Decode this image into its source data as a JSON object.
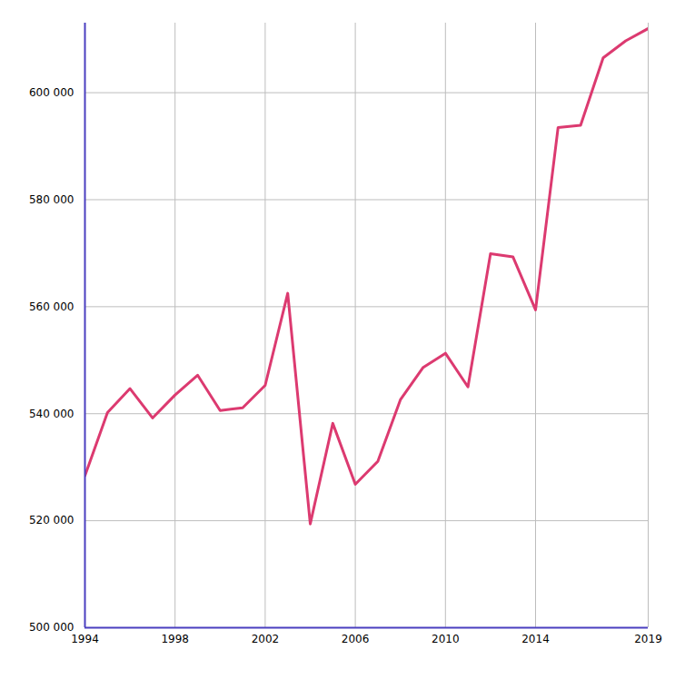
{
  "chart_data": {
    "type": "line",
    "x": [
      1994,
      1995,
      1996,
      1997,
      1998,
      1999,
      2000,
      2001,
      2002,
      2003,
      2004,
      2005,
      2006,
      2007,
      2008,
      2009,
      2010,
      2011,
      2012,
      2013,
      2014,
      2015,
      2016,
      2017,
      2018,
      2019
    ],
    "values": [
      528400,
      540200,
      544700,
      539200,
      543500,
      547200,
      540600,
      541100,
      545300,
      562500,
      519400,
      538200,
      526800,
      531100,
      542600,
      548600,
      551300,
      545000,
      569900,
      569300,
      559400,
      593500,
      593900,
      606500,
      609700,
      612000
    ],
    "color": "#dc3a70",
    "xlim": [
      1994,
      2019
    ],
    "xticks": [
      1994,
      1998,
      2002,
      2006,
      2010,
      2014,
      2019
    ],
    "ylim": [
      500000,
      613000
    ],
    "yticks": [
      {
        "value": 500000,
        "label": "500 000"
      },
      {
        "value": 520000,
        "label": "520 000"
      },
      {
        "value": 540000,
        "label": "540 000"
      },
      {
        "value": 560000,
        "label": "560 000"
      },
      {
        "value": 580000,
        "label": "580 000"
      },
      {
        "value": 600000,
        "label": "600 000"
      }
    ],
    "grid": true
  }
}
